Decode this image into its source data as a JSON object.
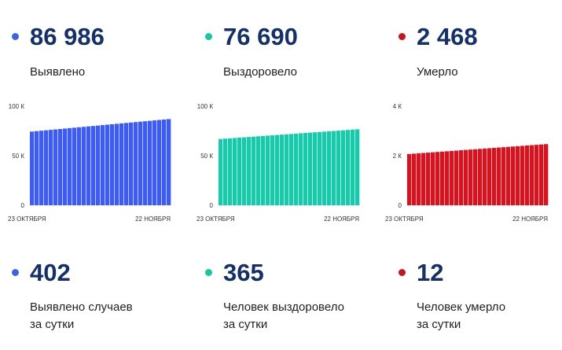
{
  "top_stats": [
    {
      "dot_color": "#3b63e8",
      "value": "86 986",
      "label": "Выявлено"
    },
    {
      "dot_color": "#12c9a0",
      "value": "76 690",
      "label": "Выздоровело"
    },
    {
      "dot_color": "#c8141c",
      "value": "2 468",
      "label": "Умерло"
    }
  ],
  "bottom_stats": [
    {
      "dot_color": "#3b63e8",
      "value": "402",
      "label_line1": "Выявлено случаев",
      "label_line2": "за сутки"
    },
    {
      "dot_color": "#12c9a0",
      "value": "365",
      "label_line1": "Человек выздоровело",
      "label_line2": "за сутки"
    },
    {
      "dot_color": "#c8141c",
      "value": "12",
      "label_line1": "Человек умерло",
      "label_line2": "за сутки"
    }
  ],
  "chart_data": [
    {
      "type": "bar",
      "color": "#3b5bff",
      "x_start_label": "23 ОКТЯБРЯ",
      "x_end_label": "22 НОЯБРЯ",
      "y_ticks": [
        "100 К",
        "50 К",
        "0"
      ],
      "ylim": [
        0,
        100000
      ],
      "bar_count": 30,
      "values_start": 74400,
      "values_end": 86986
    },
    {
      "type": "bar",
      "color": "#14ccaa",
      "x_start_label": "23 ОКТЯБРЯ",
      "x_end_label": "22 НОЯБРЯ",
      "y_ticks": [
        "100 К",
        "50 К",
        "0"
      ],
      "ylim": [
        0,
        100000
      ],
      "bar_count": 30,
      "values_start": 66900,
      "values_end": 76690
    },
    {
      "type": "bar",
      "color": "#e00f1c",
      "x_start_label": "23 ОКТЯБРЯ",
      "x_end_label": "22 НОЯБРЯ",
      "y_ticks": [
        "4 К",
        "2 К",
        "0"
      ],
      "ylim": [
        0,
        4000
      ],
      "bar_count": 30,
      "values_start": 2070,
      "values_end": 2468
    }
  ]
}
